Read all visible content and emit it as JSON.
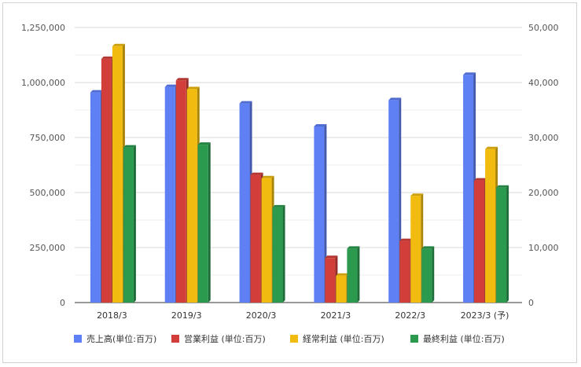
{
  "chart_data": {
    "type": "bar",
    "categories": [
      "2018/3",
      "2019/3",
      "2020/3",
      "2021/3",
      "2022/3",
      "2023/3 (予)"
    ],
    "left_axis": {
      "ylim": [
        0,
        1250000
      ],
      "ticks": [
        0,
        250000,
        500000,
        750000,
        1000000,
        1250000
      ],
      "tick_labels": [
        "0",
        "250,000",
        "500,000",
        "750,000",
        "1,000,000",
        "1,250,000"
      ]
    },
    "right_axis": {
      "ylim": [
        0,
        50000
      ],
      "ticks": [
        0,
        10000,
        20000,
        30000,
        40000,
        50000
      ],
      "tick_labels": [
        "0",
        "10,000",
        "20,000",
        "30,000",
        "40,000",
        "50,000"
      ]
    },
    "grid": true,
    "legend_position": "bottom",
    "series": [
      {
        "name": "売上高(単位:百万)",
        "axis": "left",
        "color": "#5f7ff5",
        "values": [
          955000,
          980000,
          905000,
          800000,
          920000,
          1035000
        ]
      },
      {
        "name": "営業利益 (単位:百万)",
        "axis": "right",
        "color": "#d23f3a",
        "values": [
          44300,
          40400,
          23200,
          8100,
          11200,
          22200
        ]
      },
      {
        "name": "経常利益 (単位:百万)",
        "axis": "right",
        "color": "#f1bc0f",
        "values": [
          46600,
          38800,
          22600,
          4900,
          19400,
          27900
        ]
      },
      {
        "name": "最終利益 (単位:百万)",
        "axis": "right",
        "color": "#2b9a4f",
        "values": [
          28200,
          28700,
          17300,
          9800,
          9800,
          20900
        ]
      }
    ]
  }
}
